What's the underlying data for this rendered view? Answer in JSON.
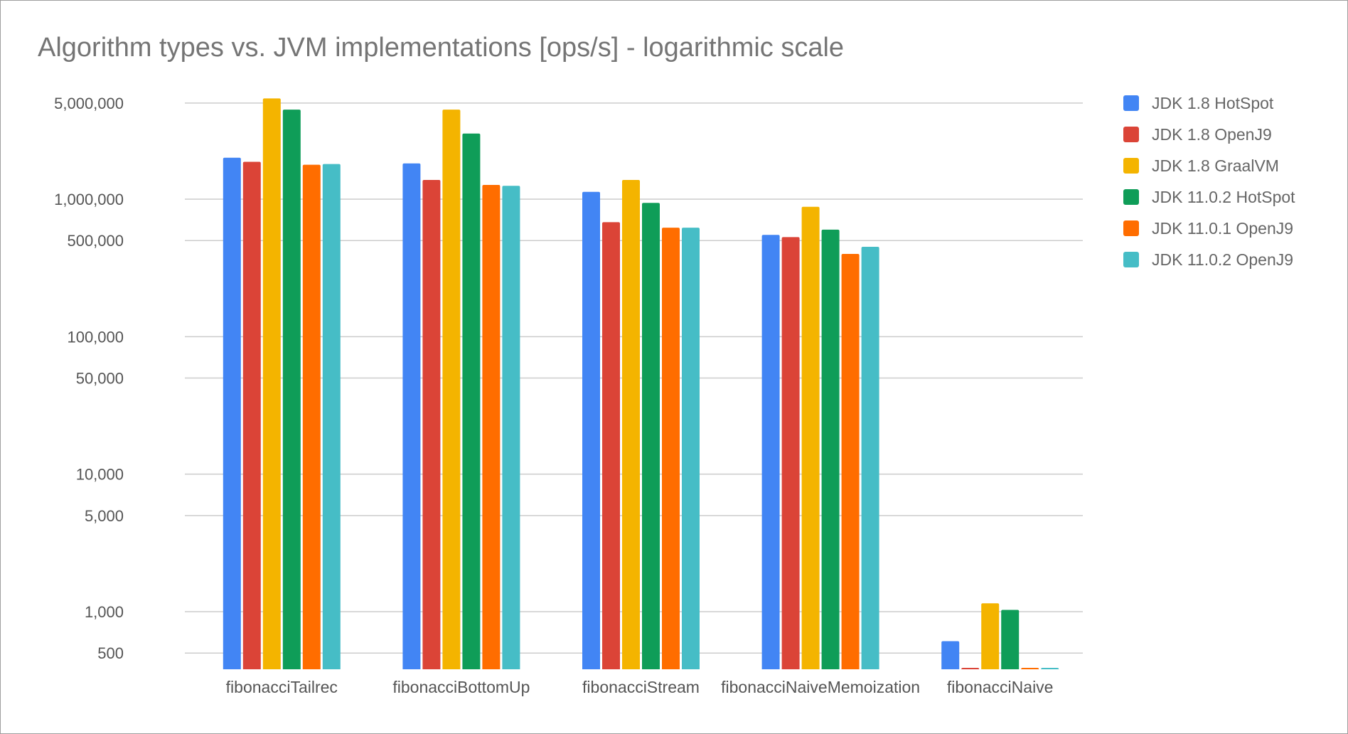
{
  "chart_data": {
    "type": "bar",
    "title": "Algorithm types vs. JVM implementations [ops/s] - logarithmic scale",
    "xlabel": "",
    "ylabel": "",
    "yscale": "log",
    "ylim": [
      300,
      6000000
    ],
    "yticks": [
      500,
      1000,
      5000,
      10000,
      50000,
      100000,
      500000,
      1000000,
      5000000
    ],
    "ytick_labels": [
      "500",
      "1,000",
      "5,000",
      "10,000",
      "50,000",
      "100,000",
      "500,000",
      "1,000,000",
      "5,000,000"
    ],
    "grid": true,
    "legend_position": "right",
    "categories": [
      "fibonacciTailrec",
      "fibonacciBottomUp",
      "fibonacciStream",
      "fibonacciNaiveMemoization",
      "fibonacciNaive"
    ],
    "series": [
      {
        "name": "JDK 1.8 HotSpot",
        "color": "#4285f4",
        "values": [
          2000000,
          1820000,
          1130000,
          550000,
          610
        ]
      },
      {
        "name": "JDK 1.8 OpenJ9",
        "color": "#db4437",
        "values": [
          1870000,
          1380000,
          680000,
          530000,
          370
        ]
      },
      {
        "name": "JDK 1.8 GraalVM",
        "color": "#f4b400",
        "values": [
          5400000,
          4480000,
          1380000,
          880000,
          1150
        ]
      },
      {
        "name": "JDK 11.0.2 HotSpot",
        "color": "#0f9d58",
        "values": [
          4480000,
          3000000,
          940000,
          600000,
          1030
        ]
      },
      {
        "name": "JDK 11.0.1 OpenJ9",
        "color": "#ff6d00",
        "values": [
          1780000,
          1270000,
          620000,
          400000,
          250
        ]
      },
      {
        "name": "JDK 11.0.2 OpenJ9",
        "color": "#46bdc6",
        "values": [
          1800000,
          1250000,
          620000,
          450000,
          305
        ]
      }
    ]
  }
}
